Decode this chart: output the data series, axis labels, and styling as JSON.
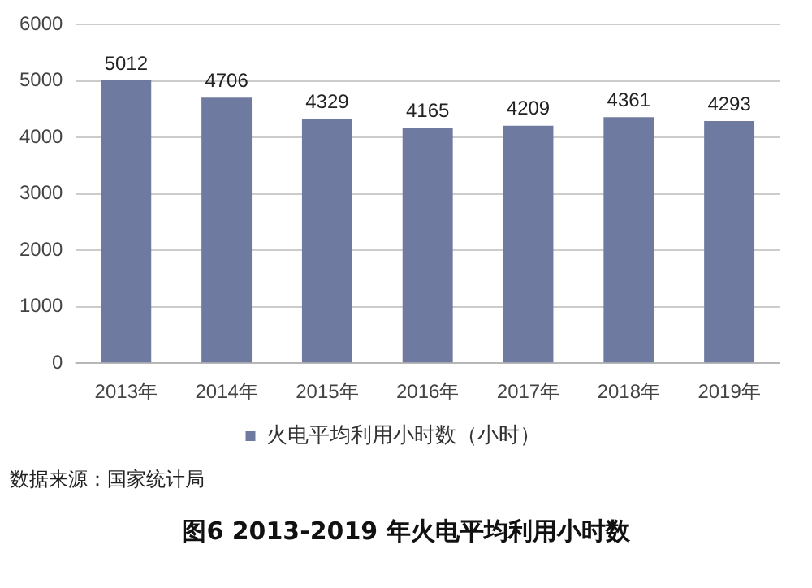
{
  "chart_data": {
    "type": "bar",
    "title": "图6 2013-2019 年火电平均利用小时数",
    "annotations": [
      "数据来源：国家统计局"
    ],
    "categories": [
      "2013年",
      "2014年",
      "2015年",
      "2016年",
      "2017年",
      "2018年",
      "2019年"
    ],
    "series": [
      {
        "name": "火电平均利用小时数（小时）",
        "color": "#6f7aa0",
        "values": [
          5012,
          4706,
          4329,
          4165,
          4209,
          4361,
          4293
        ]
      }
    ],
    "ylim": [
      0,
      6000
    ],
    "yticks": [
      0,
      1000,
      2000,
      3000,
      4000,
      5000,
      6000
    ],
    "grid": "y",
    "legend": "bottom",
    "data_labels": true
  }
}
